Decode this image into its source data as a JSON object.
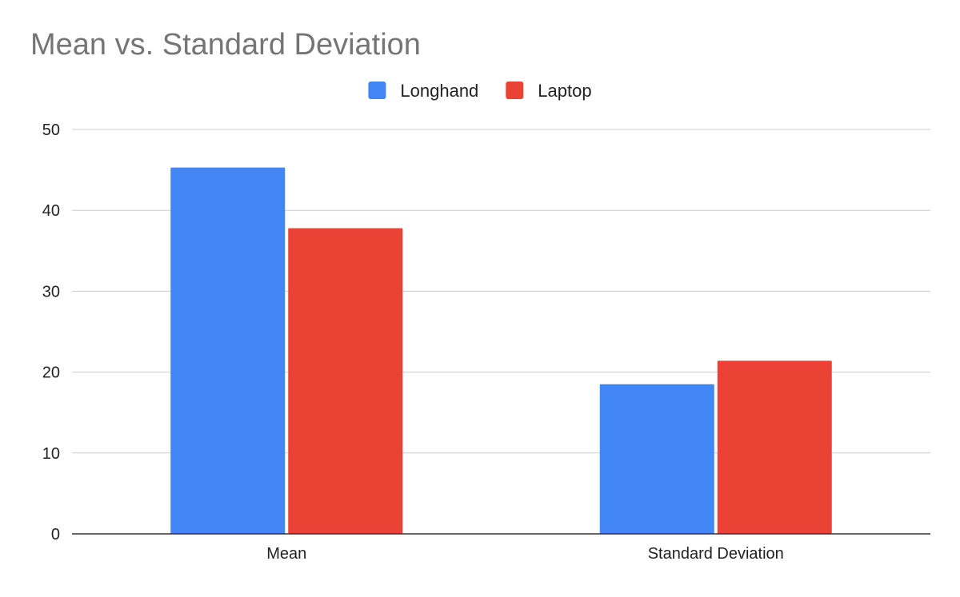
{
  "chart_data": {
    "type": "bar",
    "title": "Mean vs. Standard Deviation",
    "xlabel": "",
    "ylabel": "",
    "categories": [
      "Mean",
      "Standard Deviation"
    ],
    "series": [
      {
        "name": "Longhand",
        "color": "#4285F4",
        "values": [
          45.3,
          18.5
        ]
      },
      {
        "name": "Laptop",
        "color": "#EA4335",
        "values": [
          37.8,
          21.4
        ]
      }
    ],
    "ylim": [
      0,
      50
    ],
    "yticks": [
      0,
      10,
      20,
      30,
      40,
      50
    ],
    "ytick_labels": [
      "0",
      "10",
      "20",
      "30",
      "40",
      "50"
    ],
    "grid": true,
    "legend_position": "top-center"
  },
  "colors": {
    "title": "#757575",
    "text": "#222222",
    "grid": "#cccccc",
    "axis": "#333333"
  }
}
